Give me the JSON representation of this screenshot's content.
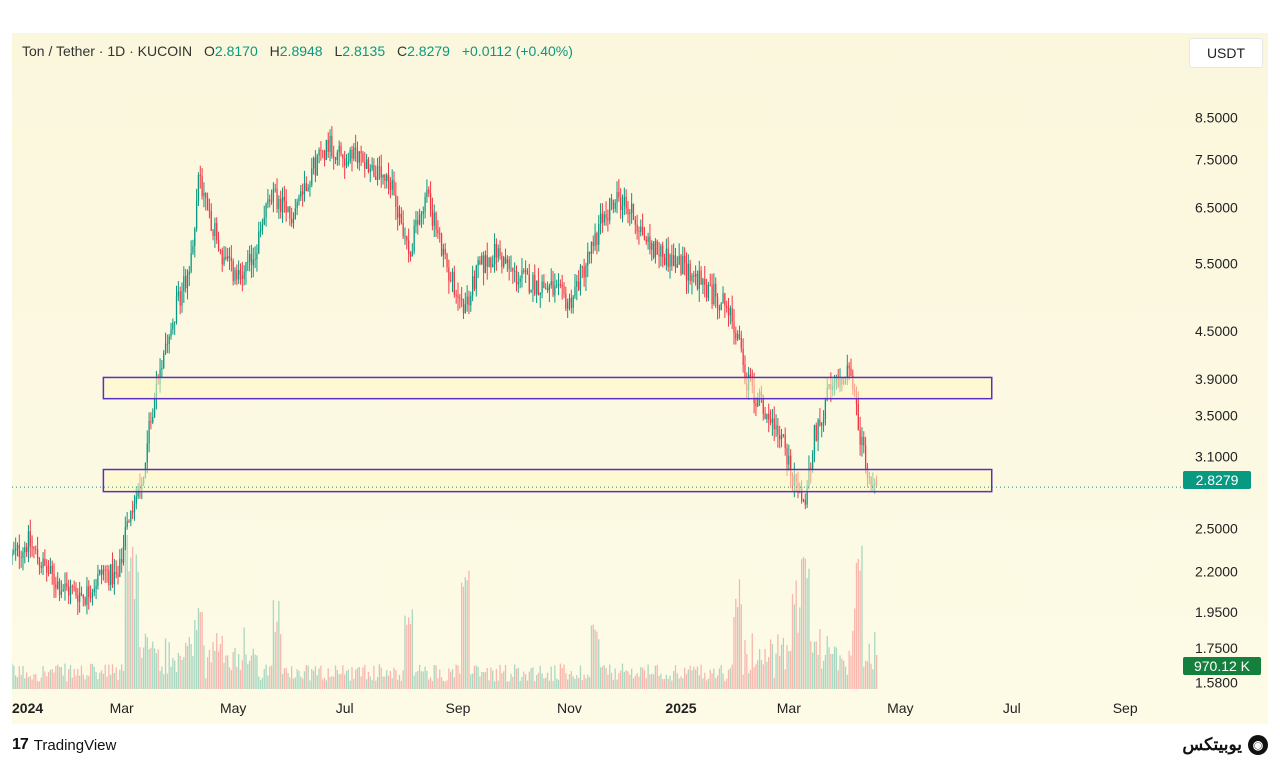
{
  "header": {
    "symbol": "Ton / Tether · 1D · KUCOIN",
    "open_label": "O",
    "open": "2.8170",
    "high_label": "H",
    "high": "2.8948",
    "low_label": "L",
    "low": "2.8135",
    "close_label": "C",
    "close": "2.8279",
    "change": "+0.0112 (+0.40%)"
  },
  "currency": "USDT",
  "price_badge": "2.8279",
  "volume_badge": "970.12 K",
  "footer": {
    "brand": "TradingView",
    "brand_icon": "tradingview-logo-icon",
    "watermark": "یوبیتکس",
    "watermark_icon": "ubitex-logo-icon"
  },
  "colors": {
    "up": "#089981",
    "down": "#f23645",
    "zone_border": "#5b2fbf",
    "price_line": "#089981",
    "panel_bg": "#fbf7dd"
  },
  "chart_data": {
    "type": "candlestick",
    "title": "Ton / Tether · 1D · KUCOIN",
    "yscale": "log",
    "ylim": [
      1.55,
      10.0
    ],
    "y_ticks": [
      "8.5000",
      "7.5000",
      "6.5000",
      "5.5000",
      "4.5000",
      "3.9000",
      "3.5000",
      "3.1000",
      "2.5000",
      "2.2000",
      "1.9500",
      "1.7500",
      "1.5800"
    ],
    "y_tick_values": [
      8.5,
      7.5,
      6.5,
      5.5,
      4.5,
      3.9,
      3.5,
      3.1,
      2.5,
      2.2,
      1.95,
      1.75,
      1.58
    ],
    "x_ticks": [
      "2024",
      "Mar",
      "May",
      "Jul",
      "Sep",
      "Nov",
      "2025",
      "Mar",
      "May",
      "Jul",
      "Sep"
    ],
    "x_tick_dates": [
      "2024-01-01",
      "2024-03-01",
      "2024-05-01",
      "2024-07-01",
      "2024-09-01",
      "2024-11-01",
      "2025-01-01",
      "2025-03-01",
      "2025-05-01",
      "2025-07-01",
      "2025-09-01"
    ],
    "x_tick_bold": [
      true,
      false,
      false,
      false,
      false,
      false,
      true,
      false,
      false,
      false,
      false
    ],
    "last_price": 2.8279,
    "zones": [
      {
        "y_top": 3.92,
        "y_bottom": 3.68,
        "x_start": "2024-02-20",
        "x_end": "2025-06-20"
      },
      {
        "y_top": 2.98,
        "y_bottom": 2.79,
        "x_start": "2024-02-20",
        "x_end": "2025-06-20"
      }
    ],
    "price_path": [
      [
        "2024-01-01",
        2.3
      ],
      [
        "2024-01-10",
        2.4
      ],
      [
        "2024-01-20",
        2.2
      ],
      [
        "2024-01-28",
        2.1
      ],
      [
        "2024-02-10",
        2.05
      ],
      [
        "2024-02-20",
        2.2
      ],
      [
        "2024-02-28",
        2.15
      ],
      [
        "2024-03-05",
        2.6
      ],
      [
        "2024-03-12",
        2.85
      ],
      [
        "2024-03-18",
        3.6
      ],
      [
        "2024-03-25",
        4.4
      ],
      [
        "2024-04-02",
        5.0
      ],
      [
        "2024-04-08",
        5.5
      ],
      [
        "2024-04-12",
        7.2
      ],
      [
        "2024-04-18",
        6.4
      ],
      [
        "2024-04-25",
        5.6
      ],
      [
        "2024-05-05",
        5.2
      ],
      [
        "2024-05-12",
        5.6
      ],
      [
        "2024-05-22",
        6.8
      ],
      [
        "2024-06-01",
        6.3
      ],
      [
        "2024-06-12",
        7.2
      ],
      [
        "2024-06-22",
        7.9
      ],
      [
        "2024-07-01",
        7.5
      ],
      [
        "2024-07-10",
        7.6
      ],
      [
        "2024-07-20",
        7.1
      ],
      [
        "2024-07-28",
        6.8
      ],
      [
        "2024-08-05",
        5.7
      ],
      [
        "2024-08-15",
        6.8
      ],
      [
        "2024-08-25",
        5.5
      ],
      [
        "2024-09-05",
        4.8
      ],
      [
        "2024-09-12",
        5.4
      ],
      [
        "2024-09-22",
        5.7
      ],
      [
        "2024-10-02",
        5.3
      ],
      [
        "2024-10-12",
        5.2
      ],
      [
        "2024-10-22",
        5.1
      ],
      [
        "2024-11-01",
        4.9
      ],
      [
        "2024-11-10",
        5.5
      ],
      [
        "2024-11-20",
        6.4
      ],
      [
        "2024-11-28",
        6.7
      ],
      [
        "2024-12-05",
        6.4
      ],
      [
        "2024-12-15",
        5.8
      ],
      [
        "2024-12-25",
        5.6
      ],
      [
        "2025-01-05",
        5.4
      ],
      [
        "2025-01-15",
        5.1
      ],
      [
        "2025-01-25",
        4.9
      ],
      [
        "2025-02-01",
        4.4
      ],
      [
        "2025-02-05",
        3.9
      ],
      [
        "2025-02-15",
        3.6
      ],
      [
        "2025-02-25",
        3.3
      ],
      [
        "2025-03-05",
        2.8
      ],
      [
        "2025-03-10",
        2.7
      ],
      [
        "2025-03-15",
        3.3
      ],
      [
        "2025-03-22",
        3.7
      ],
      [
        "2025-03-30",
        3.9
      ],
      [
        "2025-04-03",
        4.1
      ],
      [
        "2025-04-08",
        3.4
      ],
      [
        "2025-04-13",
        3.0
      ],
      [
        "2025-04-18",
        2.83
      ]
    ],
    "volume_spikes": [
      [
        "2024-03-05",
        0.9
      ],
      [
        "2024-03-08",
        0.7
      ],
      [
        "2024-04-12",
        0.45
      ],
      [
        "2024-05-25",
        0.6
      ],
      [
        "2024-08-05",
        0.55
      ],
      [
        "2024-09-05",
        0.95
      ],
      [
        "2024-11-15",
        0.45
      ],
      [
        "2025-02-01",
        0.75
      ],
      [
        "2025-03-05",
        0.6
      ],
      [
        "2025-03-10",
        0.95
      ],
      [
        "2025-04-08",
        0.8
      ]
    ]
  }
}
